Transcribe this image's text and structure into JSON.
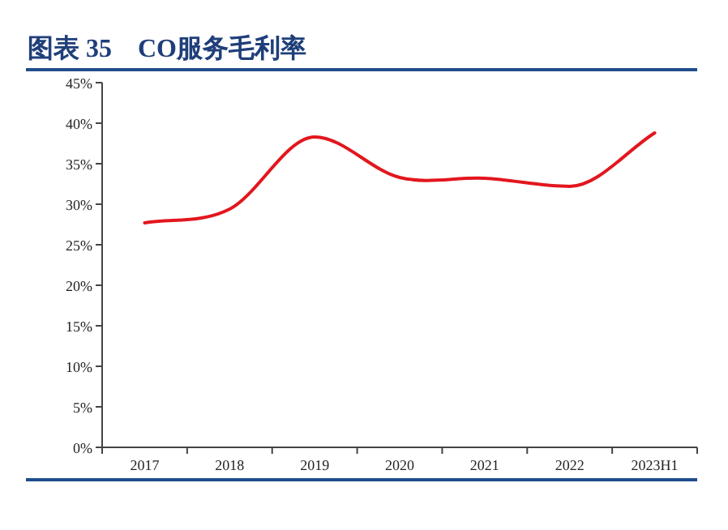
{
  "chart_data": {
    "type": "line",
    "title": "图表 35　CO服务毛利率",
    "categories": [
      "2017",
      "2018",
      "2019",
      "2020",
      "2021",
      "2022",
      "2023H1"
    ],
    "series": [
      {
        "color": "#e3161e",
        "values": [
          27.7,
          29.4,
          38.3,
          33.3,
          33.2,
          32.2,
          38.8
        ]
      }
    ],
    "ylim": [
      0,
      45
    ],
    "yticks": [
      {
        "value": 0,
        "label": "0%"
      },
      {
        "value": 5,
        "label": "5%"
      },
      {
        "value": 10,
        "label": "10%"
      },
      {
        "value": 15,
        "label": "15%"
      },
      {
        "value": 20,
        "label": "20%"
      },
      {
        "value": 25,
        "label": "25%"
      },
      {
        "value": 30,
        "label": "30%"
      },
      {
        "value": 35,
        "label": "35%"
      },
      {
        "value": 40,
        "label": "40%"
      },
      {
        "value": 45,
        "label": "45%"
      }
    ],
    "grid": false,
    "marker": "none",
    "line_style": "solid"
  }
}
